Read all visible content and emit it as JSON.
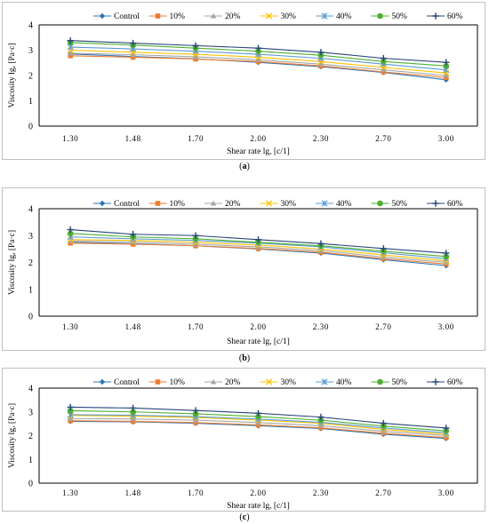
{
  "chart_data": [
    {
      "type": "line",
      "panel_label": "a",
      "xlabel": "Shear rate lg, [c/1]",
      "ylabel": "Viscosity lg, [Pa·c]",
      "categories": [
        "1.30",
        "1.48",
        "1.70",
        "2.00",
        "2.30",
        "2.70",
        "3.00"
      ],
      "ylim": [
        0,
        4
      ],
      "yticks": [
        0,
        1,
        2,
        3,
        4
      ],
      "grid": false,
      "legend": "top",
      "series": [
        {
          "name": "Control",
          "values": [
            2.85,
            2.75,
            2.66,
            2.52,
            2.35,
            2.12,
            1.83
          ]
        },
        {
          "name": "10%",
          "values": [
            2.78,
            2.72,
            2.65,
            2.55,
            2.38,
            2.14,
            1.92
          ]
        },
        {
          "name": "20%",
          "values": [
            2.88,
            2.82,
            2.74,
            2.62,
            2.45,
            2.22,
            2.0
          ]
        },
        {
          "name": "30%",
          "values": [
            3.0,
            2.92,
            2.84,
            2.72,
            2.55,
            2.32,
            2.1
          ]
        },
        {
          "name": "40%",
          "values": [
            3.12,
            3.05,
            2.96,
            2.84,
            2.68,
            2.45,
            2.22
          ]
        },
        {
          "name": "50%",
          "values": [
            3.3,
            3.2,
            3.08,
            2.96,
            2.8,
            2.55,
            2.38
          ]
        },
        {
          "name": "60%",
          "values": [
            3.38,
            3.28,
            3.18,
            3.08,
            2.92,
            2.68,
            2.52
          ]
        }
      ]
    },
    {
      "type": "line",
      "panel_label": "b",
      "xlabel": "Shear rate lg, [c/1]",
      "ylabel": "Viscosity lg, [Pa·c]",
      "categories": [
        "1.30",
        "1.48",
        "1.70",
        "2.00",
        "2.30",
        "2.70",
        "3.00"
      ],
      "ylim": [
        0,
        4
      ],
      "yticks": [
        0,
        1,
        2,
        3,
        4
      ],
      "grid": false,
      "legend": "top",
      "series": [
        {
          "name": "Control",
          "values": [
            2.75,
            2.7,
            2.62,
            2.5,
            2.35,
            2.1,
            1.88
          ]
        },
        {
          "name": "10%",
          "values": [
            2.72,
            2.68,
            2.62,
            2.52,
            2.38,
            2.14,
            1.94
          ]
        },
        {
          "name": "20%",
          "values": [
            2.8,
            2.76,
            2.68,
            2.58,
            2.44,
            2.2,
            2.0
          ]
        },
        {
          "name": "30%",
          "values": [
            2.85,
            2.82,
            2.75,
            2.65,
            2.5,
            2.28,
            2.06
          ]
        },
        {
          "name": "40%",
          "values": [
            2.95,
            2.88,
            2.82,
            2.72,
            2.58,
            2.36,
            2.14
          ]
        },
        {
          "name": "50%",
          "values": [
            3.08,
            2.95,
            2.88,
            2.75,
            2.62,
            2.42,
            2.22
          ]
        },
        {
          "name": "60%",
          "values": [
            3.22,
            3.05,
            3.0,
            2.85,
            2.7,
            2.52,
            2.35
          ]
        }
      ]
    },
    {
      "type": "line",
      "panel_label": "c",
      "xlabel": "Shear rate lg, [c/1]",
      "ylabel": "Viscosity lg, [Pa·c]",
      "categories": [
        "1.30",
        "1.48",
        "1.70",
        "2.00",
        "2.30",
        "2.70",
        "3.00"
      ],
      "ylim": [
        0,
        4
      ],
      "yticks": [
        0,
        1,
        2,
        3,
        4
      ],
      "grid": false,
      "legend": "top",
      "series": [
        {
          "name": "Control",
          "values": [
            2.6,
            2.58,
            2.52,
            2.42,
            2.3,
            2.06,
            1.88
          ]
        },
        {
          "name": "10%",
          "values": [
            2.63,
            2.6,
            2.55,
            2.45,
            2.33,
            2.1,
            1.92
          ]
        },
        {
          "name": "20%",
          "values": [
            2.72,
            2.7,
            2.65,
            2.55,
            2.42,
            2.18,
            2.0
          ]
        },
        {
          "name": "30%",
          "values": [
            2.85,
            2.82,
            2.76,
            2.65,
            2.52,
            2.26,
            2.06
          ]
        },
        {
          "name": "40%",
          "values": [
            2.88,
            2.86,
            2.8,
            2.7,
            2.56,
            2.32,
            2.12
          ]
        },
        {
          "name": "50%",
          "values": [
            3.05,
            3.0,
            2.92,
            2.8,
            2.65,
            2.4,
            2.2
          ]
        },
        {
          "name": "60%",
          "values": [
            3.2,
            3.16,
            3.06,
            2.94,
            2.78,
            2.52,
            2.32
          ]
        }
      ]
    }
  ],
  "series_styles": {
    "Control": {
      "color": "#2e75b6",
      "marker": "diamond"
    },
    "10%": {
      "color": "#ed7d31",
      "marker": "square"
    },
    "20%": {
      "color": "#a5a5a5",
      "marker": "triangle"
    },
    "30%": {
      "color": "#ffc000",
      "marker": "x"
    },
    "40%": {
      "color": "#5b9bd5",
      "marker": "star"
    },
    "50%": {
      "color": "#4caf2f",
      "marker": "circle"
    },
    "60%": {
      "color": "#264478",
      "marker": "plus"
    }
  }
}
